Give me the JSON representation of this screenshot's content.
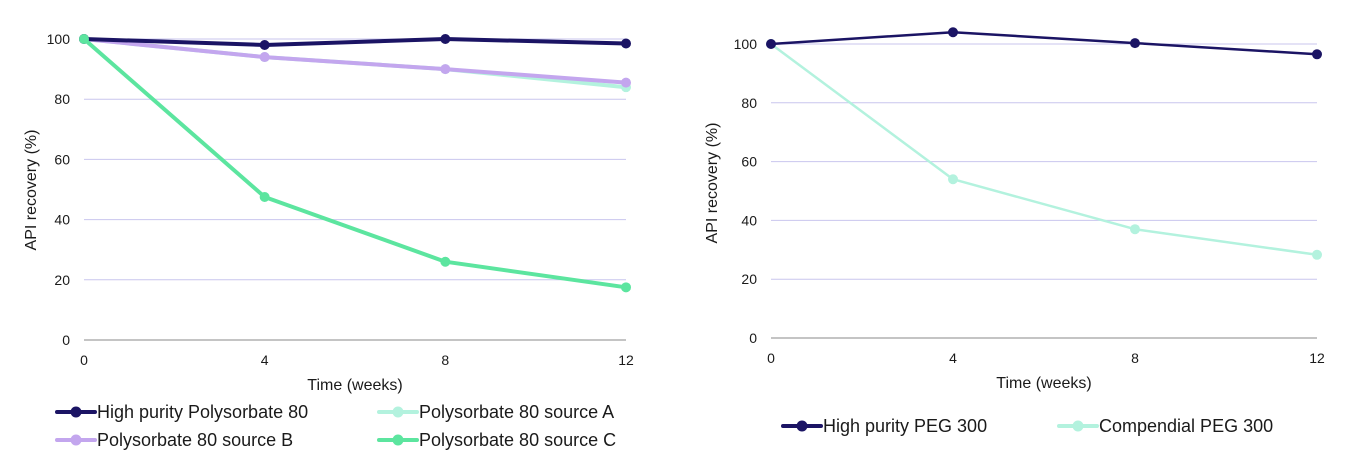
{
  "chart_data": [
    {
      "type": "line",
      "xlabel": "Time (weeks)",
      "ylabel": "API recovery (%)",
      "x": [
        0,
        4,
        8,
        12
      ],
      "xlim": [
        0,
        12
      ],
      "ylim": [
        0,
        100
      ],
      "yticks": [
        0,
        20,
        40,
        60,
        80,
        100
      ],
      "xticks": [
        0,
        4,
        8,
        12
      ],
      "grid": "horizontal",
      "legend_position": "bottom",
      "series": [
        {
          "name": "High purity Polysorbate 80",
          "color": "#1b1464",
          "values": [
            100,
            98,
            100,
            98.5
          ]
        },
        {
          "name": "Polysorbate 80 source A",
          "color": "#b3f2de",
          "values": [
            100,
            94,
            90,
            84
          ]
        },
        {
          "name": "Polysorbate 80 source B",
          "color": "#c3a6ee",
          "values": [
            100,
            94,
            90,
            85.5
          ]
        },
        {
          "name": "Polysorbate 80 source C",
          "color": "#5ce59f",
          "values": [
            100,
            47.5,
            26,
            17.5
          ]
        }
      ]
    },
    {
      "type": "line",
      "xlabel": "Time (weeks)",
      "ylabel": "API recovery (%)",
      "x": [
        0,
        4,
        8,
        12
      ],
      "xlim": [
        0,
        12
      ],
      "ylim": [
        0,
        100
      ],
      "yticks": [
        0,
        20,
        40,
        60,
        80,
        100
      ],
      "xticks": [
        0,
        4,
        8,
        12
      ],
      "grid": "horizontal",
      "legend_position": "bottom",
      "series": [
        {
          "name": "High purity PEG 300",
          "color": "#1b1464",
          "values": [
            100,
            104,
            100.3,
            96.5
          ]
        },
        {
          "name": "Compendial PEG 300",
          "color": "#b3f2de",
          "values": [
            100,
            54,
            37,
            28.3
          ]
        }
      ]
    }
  ]
}
